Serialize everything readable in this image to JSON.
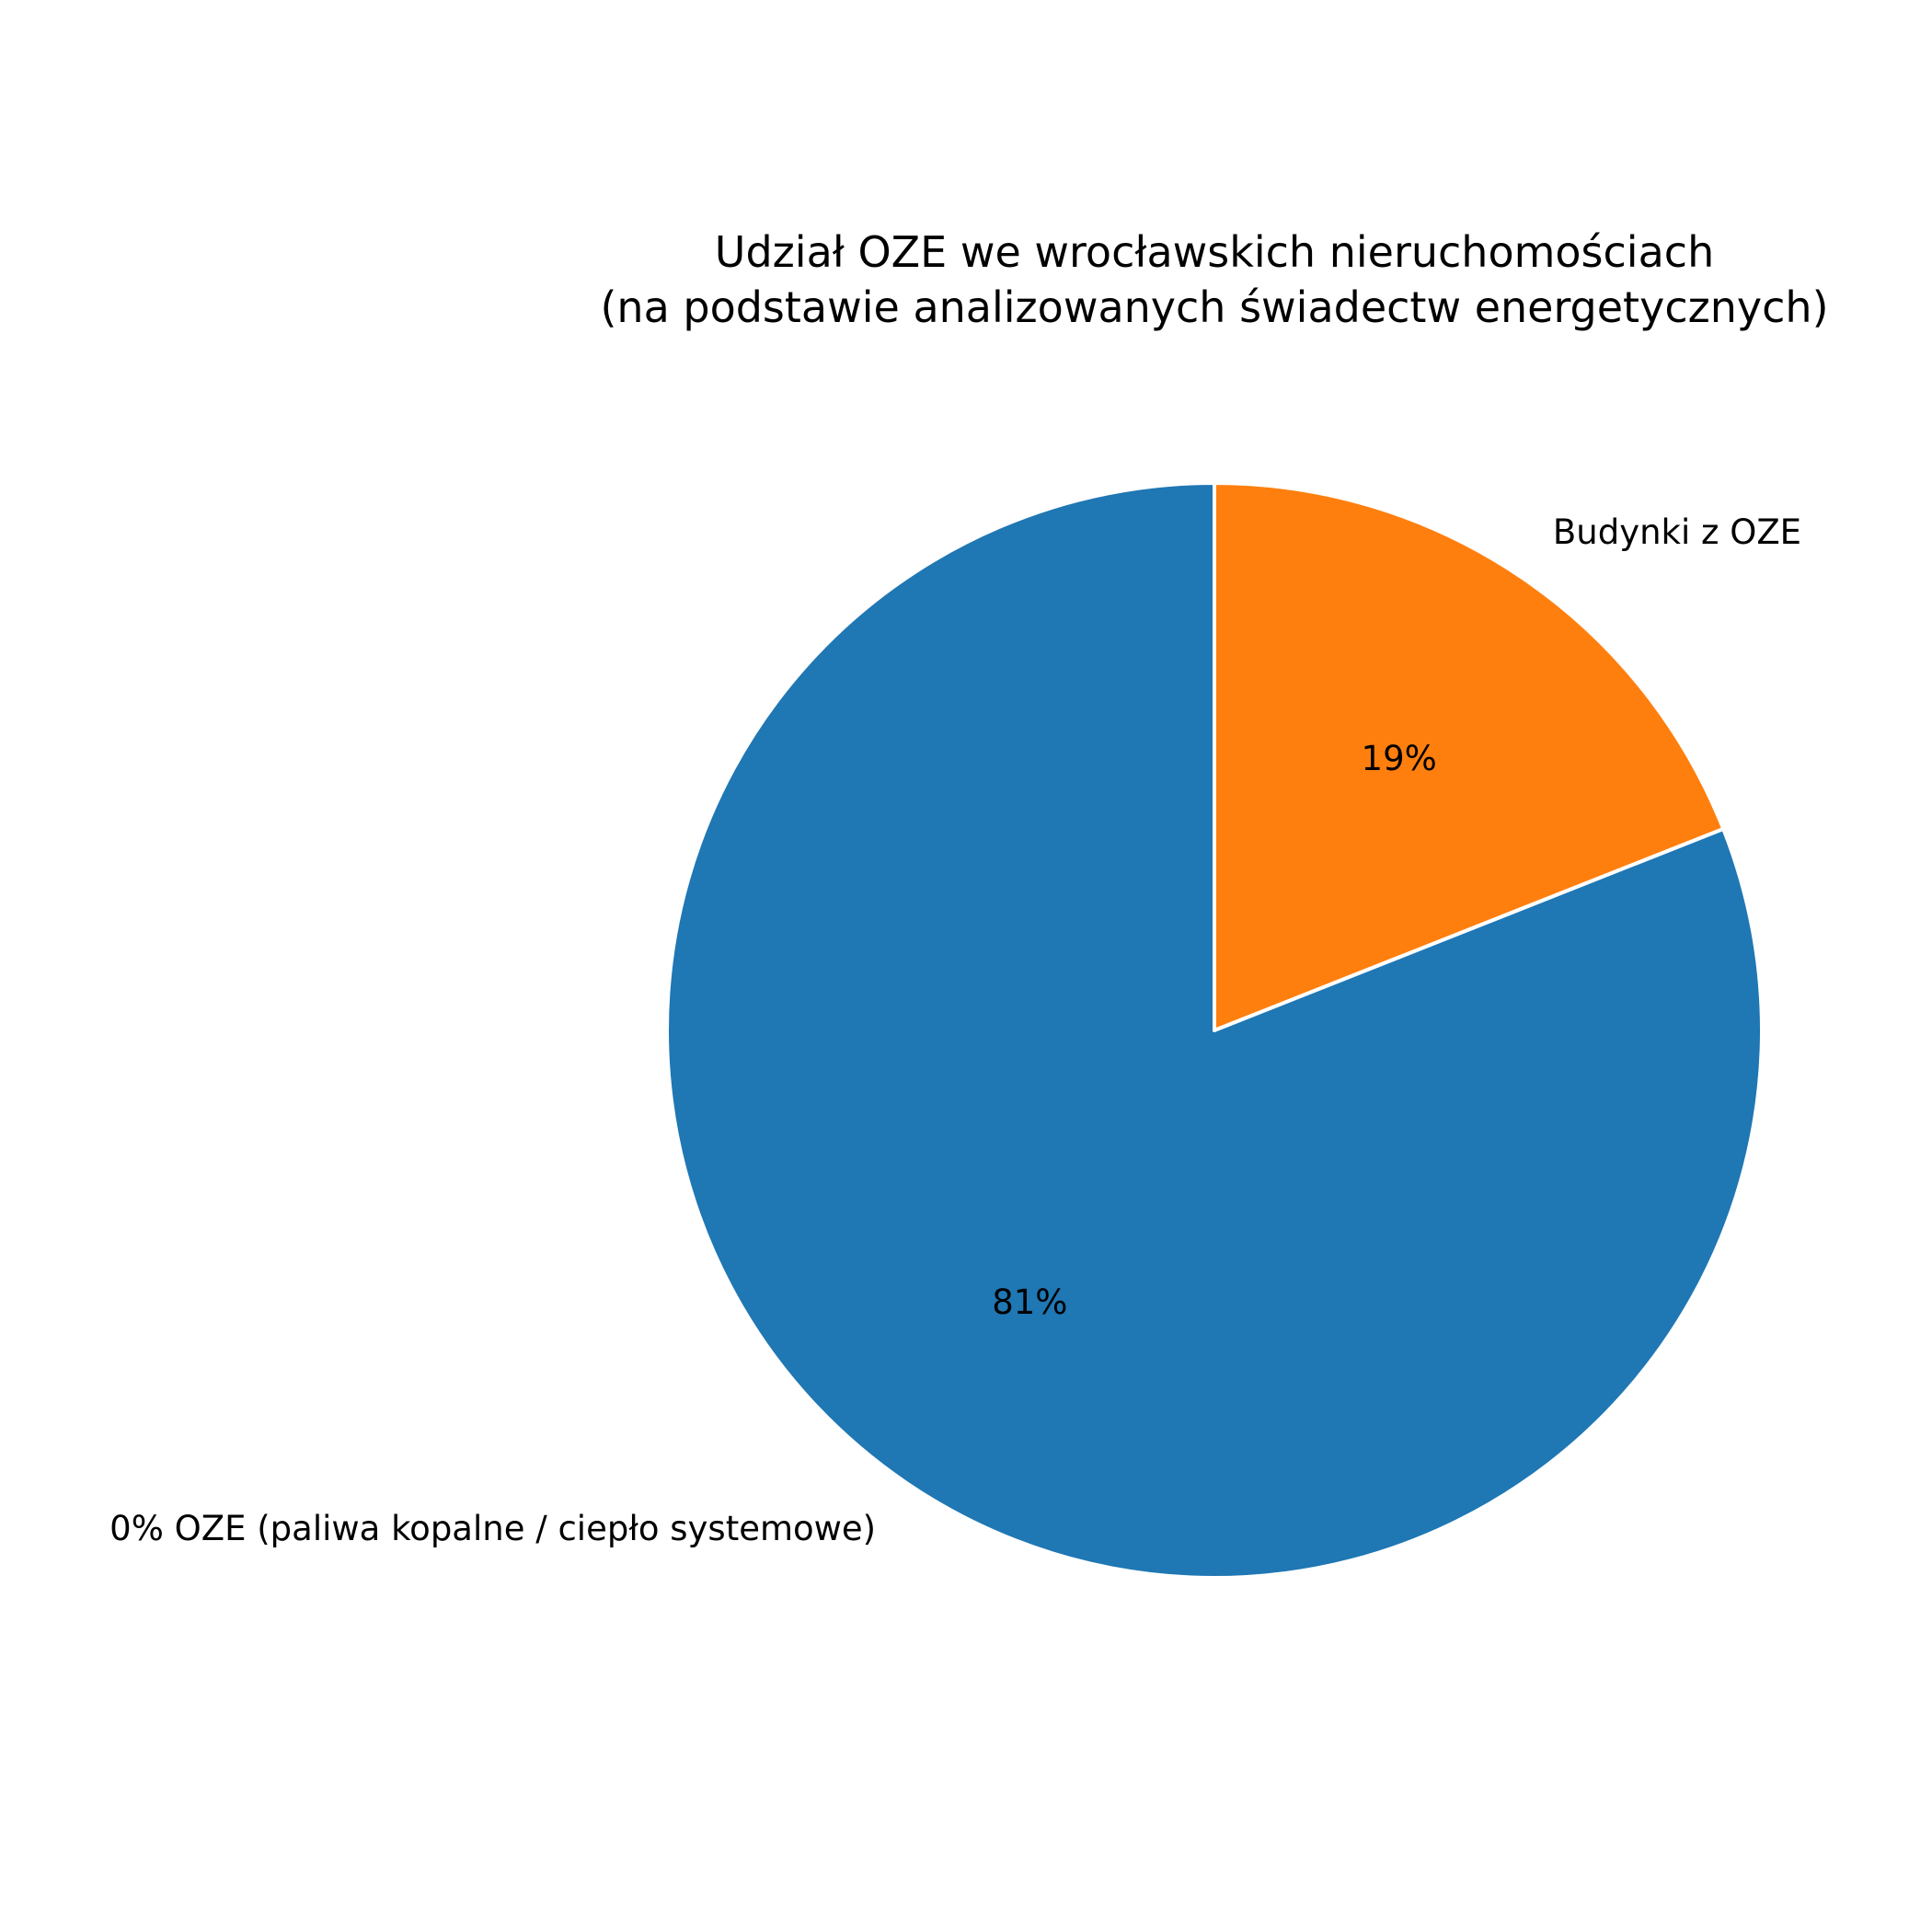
{
  "chart_data": {
    "type": "pie",
    "title": "Udział OZE we wrocławskich nieruchomościach",
    "subtitle": "(na podstawie analizowanych świadectw energetycznych)",
    "slices": [
      {
        "label": "Budynki z OZE",
        "value": 19,
        "value_label": "19%",
        "color": "#ff7f0e"
      },
      {
        "label": "0% OZE (paliwa kopalne / ciepło systemowe)",
        "value": 81,
        "value_label": "81%",
        "color": "#1f77b4"
      }
    ],
    "start_angle_deg": 90,
    "direction": "clockwise",
    "slice_edge_color": "#ffffff"
  }
}
